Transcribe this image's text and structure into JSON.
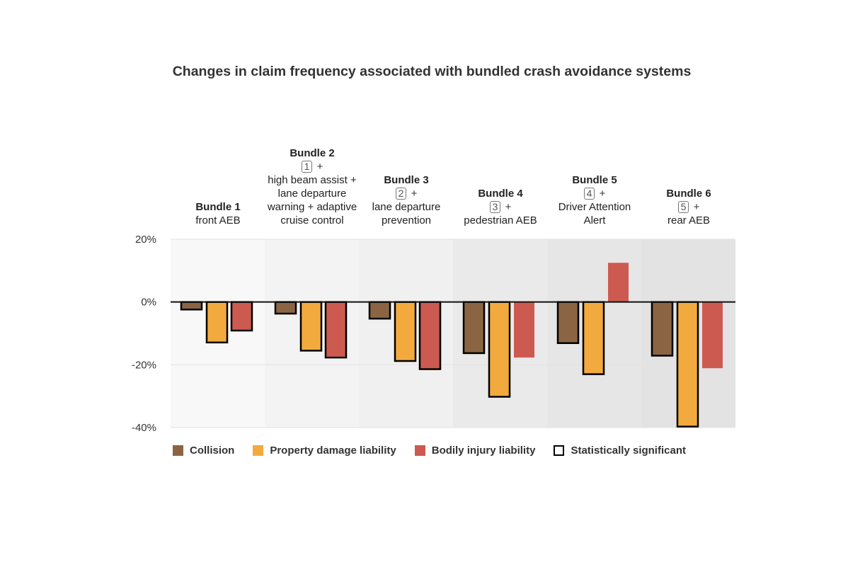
{
  "title": "Changes in claim frequency associated with bundled crash avoidance systems",
  "bundles": [
    {
      "name": "Bundle 1",
      "ref": "",
      "desc": "front AEB"
    },
    {
      "name": "Bundle 2",
      "ref": "1",
      "desc": "high beam assist + lane departure warning + adaptive cruise control"
    },
    {
      "name": "Bundle 3",
      "ref": "2",
      "desc": "lane departure prevention"
    },
    {
      "name": "Bundle 4",
      "ref": "3",
      "desc": "pedestrian AEB"
    },
    {
      "name": "Bundle 5",
      "ref": "4",
      "desc": "Driver Attention Alert"
    },
    {
      "name": "Bundle 6",
      "ref": "5",
      "desc": "rear AEB"
    }
  ],
  "plus_sign": "+",
  "legend": [
    {
      "label": "Collision",
      "color": "#8B6543",
      "kind": "fill"
    },
    {
      "label": "Property damage liability",
      "color": "#F2AA3F",
      "kind": "fill"
    },
    {
      "label": "Bodily injury liability",
      "color": "#CD5A50",
      "kind": "fill"
    },
    {
      "label": "Statistically significant",
      "color": "#000000",
      "kind": "outline"
    }
  ],
  "chart_data": {
    "type": "bar",
    "title": "Changes in claim frequency associated with bundled crash avoidance systems",
    "categories": [
      "Bundle 1",
      "Bundle 2",
      "Bundle 3",
      "Bundle 4",
      "Bundle 5",
      "Bundle 6"
    ],
    "series": [
      {
        "name": "Collision",
        "color": "#8B6543",
        "values": [
          -2.4,
          -3.7,
          -5.3,
          -16.3,
          -13.1,
          -17.1
        ],
        "significant": [
          true,
          true,
          true,
          true,
          true,
          true
        ]
      },
      {
        "name": "Property damage liability",
        "color": "#F2AA3F",
        "values": [
          -12.9,
          -15.5,
          -18.8,
          -30.2,
          -23.0,
          -39.7
        ],
        "significant": [
          true,
          true,
          true,
          true,
          true,
          true
        ]
      },
      {
        "name": "Bodily injury liability",
        "color": "#CD5A50",
        "values": [
          -9.1,
          -17.7,
          -21.4,
          -17.7,
          12.5,
          -21.1
        ],
        "significant": [
          true,
          true,
          true,
          false,
          false,
          false
        ]
      }
    ],
    "yticks": [
      20,
      0,
      -20,
      -40
    ],
    "ytick_labels": [
      "20%",
      "0%",
      "-20%",
      "-40%"
    ],
    "ylim": [
      -40,
      20
    ],
    "xlabel": "",
    "ylabel": "",
    "grid": true,
    "legend_position": "bottom",
    "band_colors": [
      "#F8F8F8",
      "#F3F3F3",
      "#F0F0F0",
      "#EAEAEA",
      "#E6E6E6",
      "#E3E3E3"
    ]
  }
}
